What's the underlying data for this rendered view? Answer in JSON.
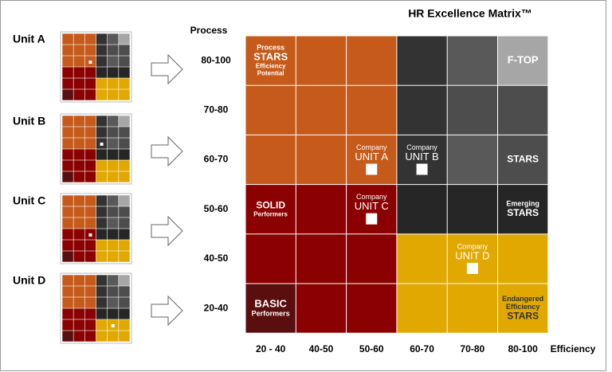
{
  "title": "HR Excellence Matrix™",
  "y_axis_label": "Process",
  "x_axis_label": "Efficiency",
  "rows": [
    "80-100",
    "70-80",
    "60-70",
    "50-60",
    "40-50",
    "20-40"
  ],
  "columns": [
    "20 - 40",
    "40-50",
    "50-60",
    "60-70",
    "70-80",
    "80-100"
  ],
  "matrix": [
    [
      [
        "Process",
        "STARS",
        "Efficiency",
        "Potential"
      ],
      [],
      [],
      [],
      [],
      [
        "F-TOP"
      ]
    ],
    [
      [],
      [],
      [],
      [],
      [],
      []
    ],
    [
      [],
      [],
      [
        "Company",
        "UNIT A"
      ],
      [
        "Company",
        "UNIT B"
      ],
      [],
      [
        "STARS"
      ]
    ],
    [
      [
        "SOLID",
        "Performers"
      ],
      [],
      [
        "Company",
        "UNIT C"
      ],
      [],
      [],
      [
        "Emerging",
        "STARS"
      ]
    ],
    [
      [],
      [],
      [],
      [],
      [
        "Company",
        "UNIT D"
      ],
      []
    ],
    [
      [
        "BASIC",
        "Performers"
      ],
      [],
      [],
      [],
      [],
      [
        "Endangered",
        "Efficiency",
        "STARS"
      ]
    ]
  ],
  "units": [
    "Unit A",
    "Unit B",
    "Unit C",
    "Unit D"
  ]
}
